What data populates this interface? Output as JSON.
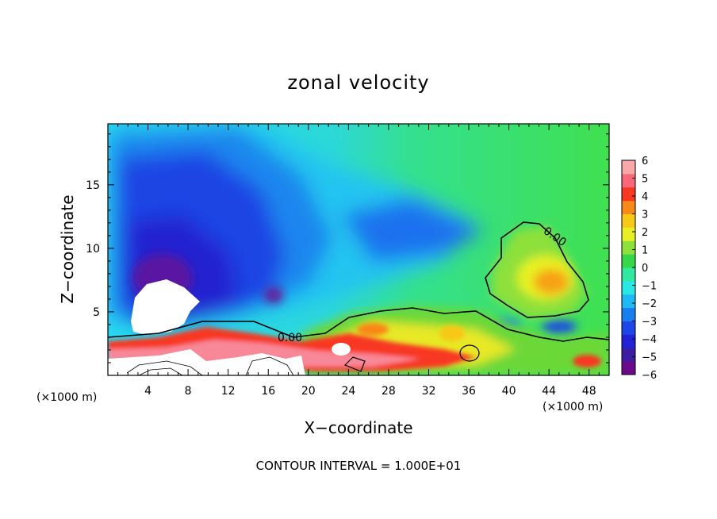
{
  "chart_data": {
    "type": "heatmap",
    "title": "zonal velocity",
    "xlabel": "X−coordinate",
    "ylabel": "Z−coordinate",
    "x_unit_left": "(×1000 m)",
    "x_unit_right": "(×1000 m)",
    "xlim": [
      0,
      50
    ],
    "ylim": [
      0,
      19.8
    ],
    "x_ticks": [
      4,
      8,
      12,
      16,
      20,
      24,
      28,
      32,
      36,
      40,
      44,
      48
    ],
    "y_ticks": [
      5,
      10,
      15
    ],
    "colorbar": {
      "min": -6,
      "max": 6,
      "ticks": [
        6,
        5,
        4,
        3,
        2,
        1,
        0,
        -1,
        -2,
        -3,
        -4,
        -5,
        -6
      ],
      "colors": [
        "#6a0a8a",
        "#3c1ca0",
        "#2222d6",
        "#1e46e8",
        "#1a7ef0",
        "#1eb8f2",
        "#28e8e6",
        "#30e8a0",
        "#36d84a",
        "#8ee03a",
        "#e8f024",
        "#f8c818",
        "#f88818",
        "#f83820",
        "#f86878",
        "#f8a8a8"
      ]
    },
    "contour_labels": [
      "0.00",
      "0.00"
    ],
    "contour_interval_label": "CONTOUR INTERVAL = 1.000E+01"
  }
}
